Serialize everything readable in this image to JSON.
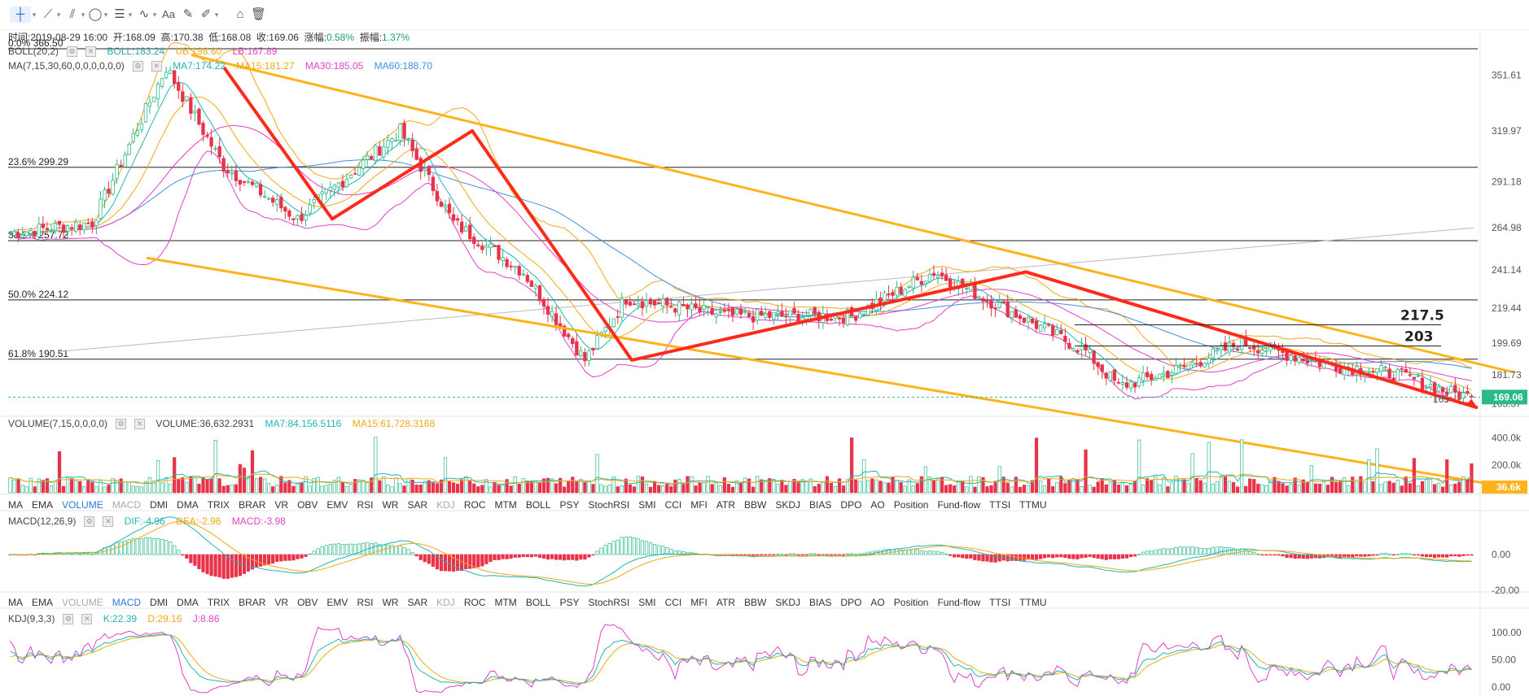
{
  "toolbar": {
    "tools": [
      "crosshair-icon",
      "line-icon",
      "multi-line-icon",
      "ellipse-icon",
      "parallel-lines-icon",
      "wave-icon",
      "text-tool",
      "ruler-icon",
      "pen-icon",
      "lock-icon",
      "trash-icon"
    ],
    "text_tool_label": "Aa"
  },
  "info": {
    "time_label": "时间:",
    "time": "2019-08-29 16:00",
    "open_label": "开:",
    "open": "168.09",
    "high_label": "高:",
    "high": "170.38",
    "low_label": "低:",
    "low": "168.08",
    "close_label": "收:",
    "close": "169.06",
    "change_label": "涨幅:",
    "change": "0.58%",
    "amp_label": "振幅:",
    "amp": "1.37%"
  },
  "boll": {
    "name": "BOLL(20,2)",
    "boll": "BOLL:183.24",
    "ub": "UB:198.60",
    "lb": "LB:167.89"
  },
  "ma": {
    "name": "MA(7,15,30,60,0,0,0,0,0,0)",
    "ma7": "MA7:174.22",
    "ma15": "MA15:181.27",
    "ma30": "MA30:185.05",
    "ma60": "MA60:188.70"
  },
  "fib": [
    {
      "label": "0.0% 366.50",
      "price": 366.5
    },
    {
      "label": "23.6% 299.29",
      "price": 299.29
    },
    {
      "label": "38.2% 257.72",
      "price": 257.72
    },
    {
      "label": "50.0% 224.12",
      "price": 224.12
    },
    {
      "label": "61.8% 190.51",
      "price": 190.51
    }
  ],
  "annotations": {
    "a1": "217.5",
    "a2": "203",
    "a3": "165"
  },
  "price_axis": [
    "351.61",
    "319.97",
    "291.18",
    "264.98",
    "241.14",
    "219.44",
    "199.69",
    "181.73",
    "165.37"
  ],
  "last_price": "169.06",
  "volume": {
    "name": "VOLUME(7,15,0,0,0,0)",
    "vol": "VOLUME:36,632.2931",
    "ma7": "MA7:84,156.5116",
    "ma15": "MA15:61,728.3168",
    "axis": [
      "400.0k",
      "200.0k"
    ],
    "last": "36.6k"
  },
  "tabs1": [
    "MA",
    "EMA",
    "VOLUME",
    "MACD",
    "DMI",
    "DMA",
    "TRIX",
    "BRAR",
    "VR",
    "OBV",
    "EMV",
    "RSI",
    "WR",
    "SAR",
    "KDJ",
    "ROC",
    "MTM",
    "BOLL",
    "PSY",
    "StochRSI",
    "SMI",
    "CCI",
    "MFI",
    "ATR",
    "BBW",
    "SKDJ",
    "BIAS",
    "DPO",
    "AO",
    "Position",
    "Fund-flow",
    "TTSI",
    "TTMU"
  ],
  "tabs2": [
    "MA",
    "EMA",
    "VOLUME",
    "MACD",
    "DMI",
    "DMA",
    "TRIX",
    "BRAR",
    "VR",
    "OBV",
    "EMV",
    "RSI",
    "WR",
    "SAR",
    "KDJ",
    "ROC",
    "MTM",
    "BOLL",
    "PSY",
    "StochRSI",
    "SMI",
    "CCI",
    "MFI",
    "ATR",
    "BBW",
    "SKDJ",
    "BIAS",
    "DPO",
    "AO",
    "Position",
    "Fund-flow",
    "TTSI",
    "TTMU"
  ],
  "macd": {
    "name": "MACD(12,26,9)",
    "dif": "DIF:-4.96",
    "dea": "DEA:-2.96",
    "macd": "MACD:-3.98",
    "axis": [
      "0.00",
      "-20.00"
    ]
  },
  "kdj": {
    "name": "KDJ(9,3,3)",
    "k": "K:22.39",
    "d": "D:29.16",
    "j": "J:8.86",
    "axis": [
      "100.00",
      "50.00",
      "0.00"
    ]
  },
  "colors": {
    "up": "#2bb88a",
    "down": "#e8334a",
    "ma7": "#21b5b5",
    "ma15": "#f3a811",
    "ma30": "#e040c8",
    "ma60": "#3f8fe0",
    "trend": "#ff2a1a",
    "channel": "#ffb31a"
  },
  "chart_data": {
    "type": "candlestick",
    "ylim": [
      160,
      366.5
    ],
    "pivots": [
      {
        "i": 0,
        "p": 262
      },
      {
        "i": 20,
        "p": 268
      },
      {
        "i": 38,
        "p": 356
      },
      {
        "i": 52,
        "p": 300
      },
      {
        "i": 70,
        "p": 270
      },
      {
        "i": 95,
        "p": 320
      },
      {
        "i": 108,
        "p": 268
      },
      {
        "i": 125,
        "p": 240
      },
      {
        "i": 140,
        "p": 190
      },
      {
        "i": 150,
        "p": 225
      },
      {
        "i": 175,
        "p": 215
      },
      {
        "i": 205,
        "p": 215
      },
      {
        "i": 225,
        "p": 240
      },
      {
        "i": 250,
        "p": 210
      },
      {
        "i": 262,
        "p": 195
      },
      {
        "i": 270,
        "p": 175
      },
      {
        "i": 285,
        "p": 185
      },
      {
        "i": 300,
        "p": 200
      },
      {
        "i": 320,
        "p": 188
      },
      {
        "i": 338,
        "p": 182
      },
      {
        "i": 350,
        "p": 172
      },
      {
        "i": 356,
        "p": 169.06
      }
    ],
    "n": 357
  }
}
